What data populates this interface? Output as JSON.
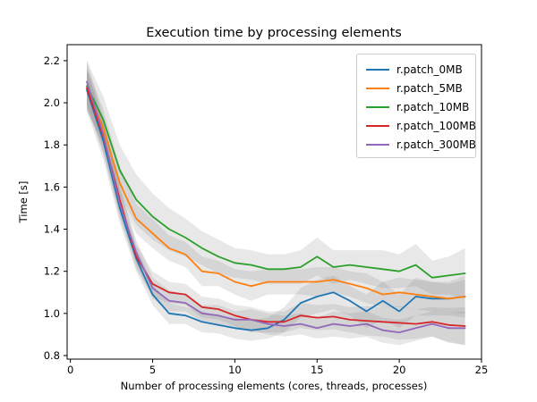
{
  "window": {
    "background": "#ffffff"
  },
  "chart_data": {
    "type": "line",
    "title": "Execution time by processing elements",
    "xlabel": "Number of processing elements (cores, threads, processes)",
    "ylabel": "Time [s]",
    "xlim": [
      -0.2,
      25
    ],
    "ylim": [
      0.783,
      2.276
    ],
    "xticks": [
      0,
      5,
      10,
      15,
      20,
      25
    ],
    "yticks": [
      0.8,
      1.0,
      1.2,
      1.4,
      1.6,
      1.8,
      2.0,
      2.2
    ],
    "grid": false,
    "legend_position": "upper right",
    "band_color": "#808080",
    "band_opacity": 0.18,
    "frame_color": "#000000",
    "x": [
      1,
      2,
      3,
      4,
      5,
      6,
      7,
      8,
      9,
      10,
      11,
      12,
      13,
      14,
      15,
      16,
      17,
      18,
      19,
      20,
      21,
      22,
      23,
      24
    ],
    "series": [
      {
        "name": "r.patch_0MB",
        "color": "#1f77b4",
        "values": [
          2.06,
          1.82,
          1.5,
          1.26,
          1.09,
          1.0,
          0.99,
          0.96,
          0.945,
          0.93,
          0.92,
          0.93,
          0.97,
          1.05,
          1.08,
          1.1,
          1.06,
          1.01,
          1.06,
          1.01,
          1.08,
          1.07,
          1.07,
          1.08
        ],
        "band_halfwidth": [
          0.1,
          0.09,
          0.07,
          0.06,
          0.05,
          0.05,
          0.04,
          0.05,
          0.04,
          0.05,
          0.05,
          0.05,
          0.06,
          0.07,
          0.08,
          0.08,
          0.07,
          0.08,
          0.09,
          0.08,
          0.09,
          0.08,
          0.08,
          0.1
        ]
      },
      {
        "name": "r.patch_5MB",
        "color": "#ff7f0e",
        "values": [
          2.07,
          1.88,
          1.62,
          1.45,
          1.38,
          1.31,
          1.28,
          1.2,
          1.19,
          1.15,
          1.13,
          1.15,
          1.15,
          1.15,
          1.15,
          1.16,
          1.14,
          1.12,
          1.09,
          1.1,
          1.09,
          1.08,
          1.07,
          1.08
        ],
        "band_halfwidth": [
          0.1,
          0.09,
          0.08,
          0.07,
          0.07,
          0.06,
          0.06,
          0.07,
          0.06,
          0.06,
          0.07,
          0.06,
          0.06,
          0.06,
          0.07,
          0.06,
          0.06,
          0.07,
          0.06,
          0.07,
          0.07,
          0.07,
          0.07,
          0.08
        ]
      },
      {
        "name": "r.patch_10MB",
        "color": "#2ca02c",
        "values": [
          2.08,
          1.92,
          1.68,
          1.54,
          1.46,
          1.4,
          1.36,
          1.31,
          1.27,
          1.24,
          1.23,
          1.21,
          1.21,
          1.22,
          1.27,
          1.22,
          1.23,
          1.22,
          1.21,
          1.2,
          1.23,
          1.17,
          1.18,
          1.19
        ],
        "band_halfwidth": [
          0.12,
          0.11,
          0.12,
          0.12,
          0.11,
          0.1,
          0.09,
          0.08,
          0.08,
          0.07,
          0.07,
          0.07,
          0.07,
          0.08,
          0.09,
          0.08,
          0.07,
          0.08,
          0.09,
          0.08,
          0.1,
          0.08,
          0.09,
          0.12
        ]
      },
      {
        "name": "r.patch_100MB",
        "color": "#d62728",
        "values": [
          2.07,
          1.84,
          1.54,
          1.27,
          1.14,
          1.1,
          1.09,
          1.03,
          1.02,
          0.99,
          0.97,
          0.96,
          0.96,
          0.99,
          0.98,
          0.985,
          0.97,
          0.965,
          0.96,
          0.955,
          0.95,
          0.96,
          0.945,
          0.94
        ],
        "band_halfwidth": [
          0.09,
          0.08,
          0.07,
          0.06,
          0.06,
          0.05,
          0.05,
          0.05,
          0.05,
          0.05,
          0.06,
          0.05,
          0.05,
          0.06,
          0.06,
          0.06,
          0.06,
          0.07,
          0.07,
          0.08,
          0.07,
          0.07,
          0.08,
          0.09
        ]
      },
      {
        "name": "r.patch_300MB",
        "color": "#9467bd",
        "values": [
          2.1,
          1.85,
          1.52,
          1.29,
          1.12,
          1.06,
          1.05,
          1.0,
          0.99,
          0.97,
          0.97,
          0.95,
          0.94,
          0.95,
          0.93,
          0.95,
          0.94,
          0.95,
          0.92,
          0.91,
          0.93,
          0.95,
          0.93,
          0.93
        ],
        "band_halfwidth": [
          0.1,
          0.09,
          0.07,
          0.06,
          0.05,
          0.05,
          0.04,
          0.04,
          0.05,
          0.04,
          0.05,
          0.05,
          0.05,
          0.05,
          0.05,
          0.06,
          0.06,
          0.06,
          0.06,
          0.06,
          0.06,
          0.06,
          0.07,
          0.08
        ]
      }
    ]
  }
}
